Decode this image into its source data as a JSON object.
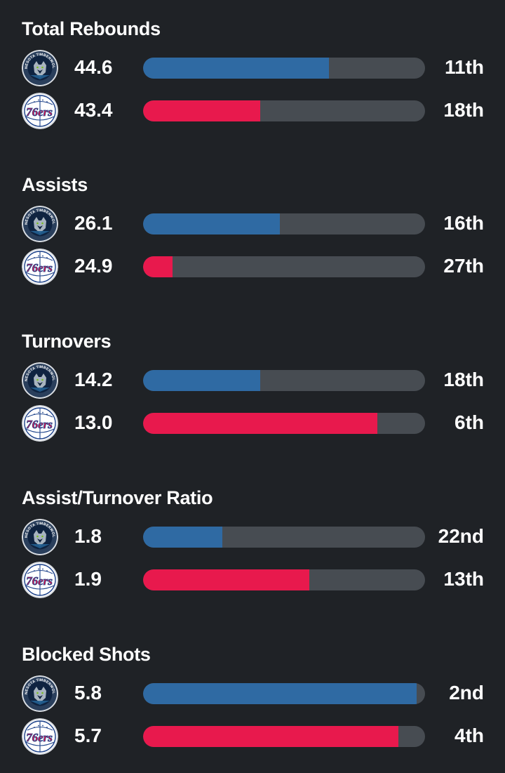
{
  "colors": {
    "background": "#1f2226",
    "track": "#474c52",
    "wolves": "#2f6aa3",
    "sixers": "#e8194d"
  },
  "teams": {
    "wolves": {
      "logo_icon": "timberwolves-logo-icon",
      "logo_text": "MINNESOTA TIMBERWOLVES"
    },
    "sixers": {
      "logo_icon": "76ers-logo-icon",
      "logo_text": "76ers"
    }
  },
  "stats": [
    {
      "title": "Total Rebounds",
      "wolves": {
        "value": "44.6",
        "rank": "11th",
        "fill_pct": 66
      },
      "sixers": {
        "value": "43.4",
        "rank": "18th",
        "fill_pct": 41.5
      }
    },
    {
      "title": "Assists",
      "wolves": {
        "value": "26.1",
        "rank": "16th",
        "fill_pct": 48.5
      },
      "sixers": {
        "value": "24.9",
        "rank": "27th",
        "fill_pct": 10.5
      }
    },
    {
      "title": "Turnovers",
      "wolves": {
        "value": "14.2",
        "rank": "18th",
        "fill_pct": 41.5
      },
      "sixers": {
        "value": "13.0",
        "rank": "6th",
        "fill_pct": 83
      }
    },
    {
      "title": "Assist/Turnover Ratio",
      "wolves": {
        "value": "1.8",
        "rank": "22nd",
        "fill_pct": 28
      },
      "sixers": {
        "value": "1.9",
        "rank": "13th",
        "fill_pct": 59
      }
    },
    {
      "title": "Blocked Shots",
      "wolves": {
        "value": "5.8",
        "rank": "2nd",
        "fill_pct": 97
      },
      "sixers": {
        "value": "5.7",
        "rank": "4th",
        "fill_pct": 90.5
      }
    }
  ]
}
